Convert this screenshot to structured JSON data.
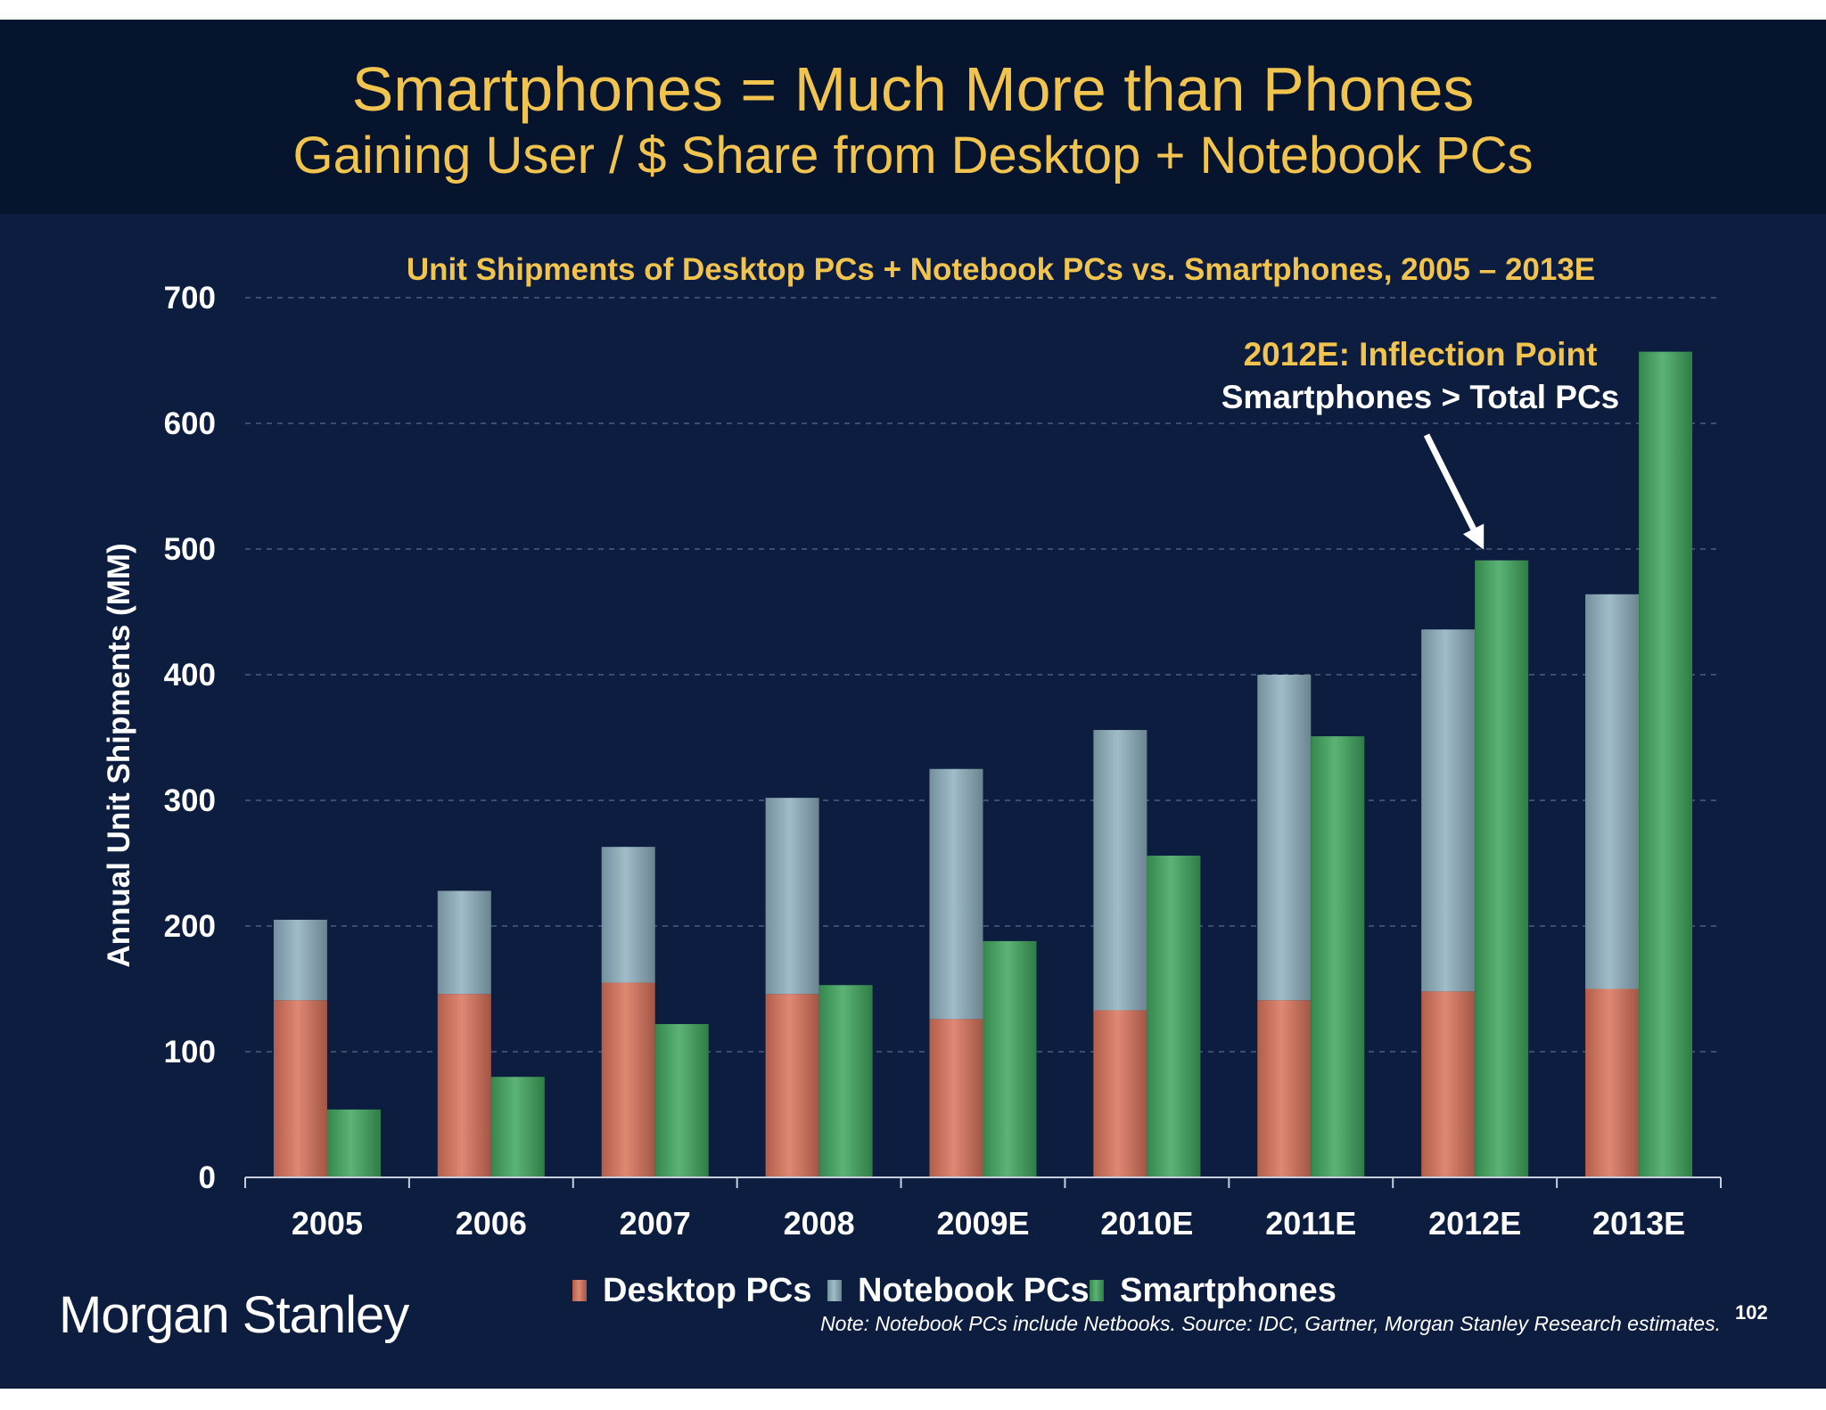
{
  "slide": {
    "title": "Smartphones = Much More than Phones",
    "subtitle": "Gaining User / $ Share from Desktop + Notebook PCs",
    "logo": "Morgan Stanley",
    "note": "Note: Notebook PCs include Netbooks. Source: IDC, Gartner, Morgan Stanley Research estimates.",
    "page_number": "102",
    "background_color": "#0d1d3f",
    "header_color": "#07142d"
  },
  "chart_data": {
    "type": "bar",
    "title": "Unit Shipments of Desktop PCs + Notebook PCs vs. Smartphones, 2005 – 2013E",
    "ylabel": "Annual Unit Shipments (MM)",
    "xlabel": "",
    "ylim": [
      0,
      700
    ],
    "yticks": [
      0,
      100,
      200,
      300,
      400,
      500,
      600,
      700
    ],
    "grid": true,
    "legend_position": "bottom",
    "categories": [
      "2005",
      "2006",
      "2007",
      "2008",
      "2009E",
      "2010E",
      "2011E",
      "2012E",
      "2013E"
    ],
    "series": [
      {
        "name": "Desktop PCs",
        "stack": "pcs",
        "color": "#d9735b",
        "values": [
          141,
          146,
          155,
          146,
          126,
          133,
          141,
          148,
          150
        ]
      },
      {
        "name": "Notebook PCs",
        "stack": "pcs",
        "color": "#8fb0c0",
        "values": [
          64,
          82,
          108,
          156,
          199,
          223,
          259,
          288,
          314
        ]
      },
      {
        "name": "Smartphones",
        "stack": "phones",
        "color": "#3fa55e",
        "values": [
          54,
          80,
          122,
          153,
          188,
          256,
          351,
          491,
          657
        ]
      }
    ],
    "annotation": {
      "title": "2012E: Inflection Point",
      "text": "Smartphones > Total PCs",
      "target_category": "2012E"
    }
  }
}
